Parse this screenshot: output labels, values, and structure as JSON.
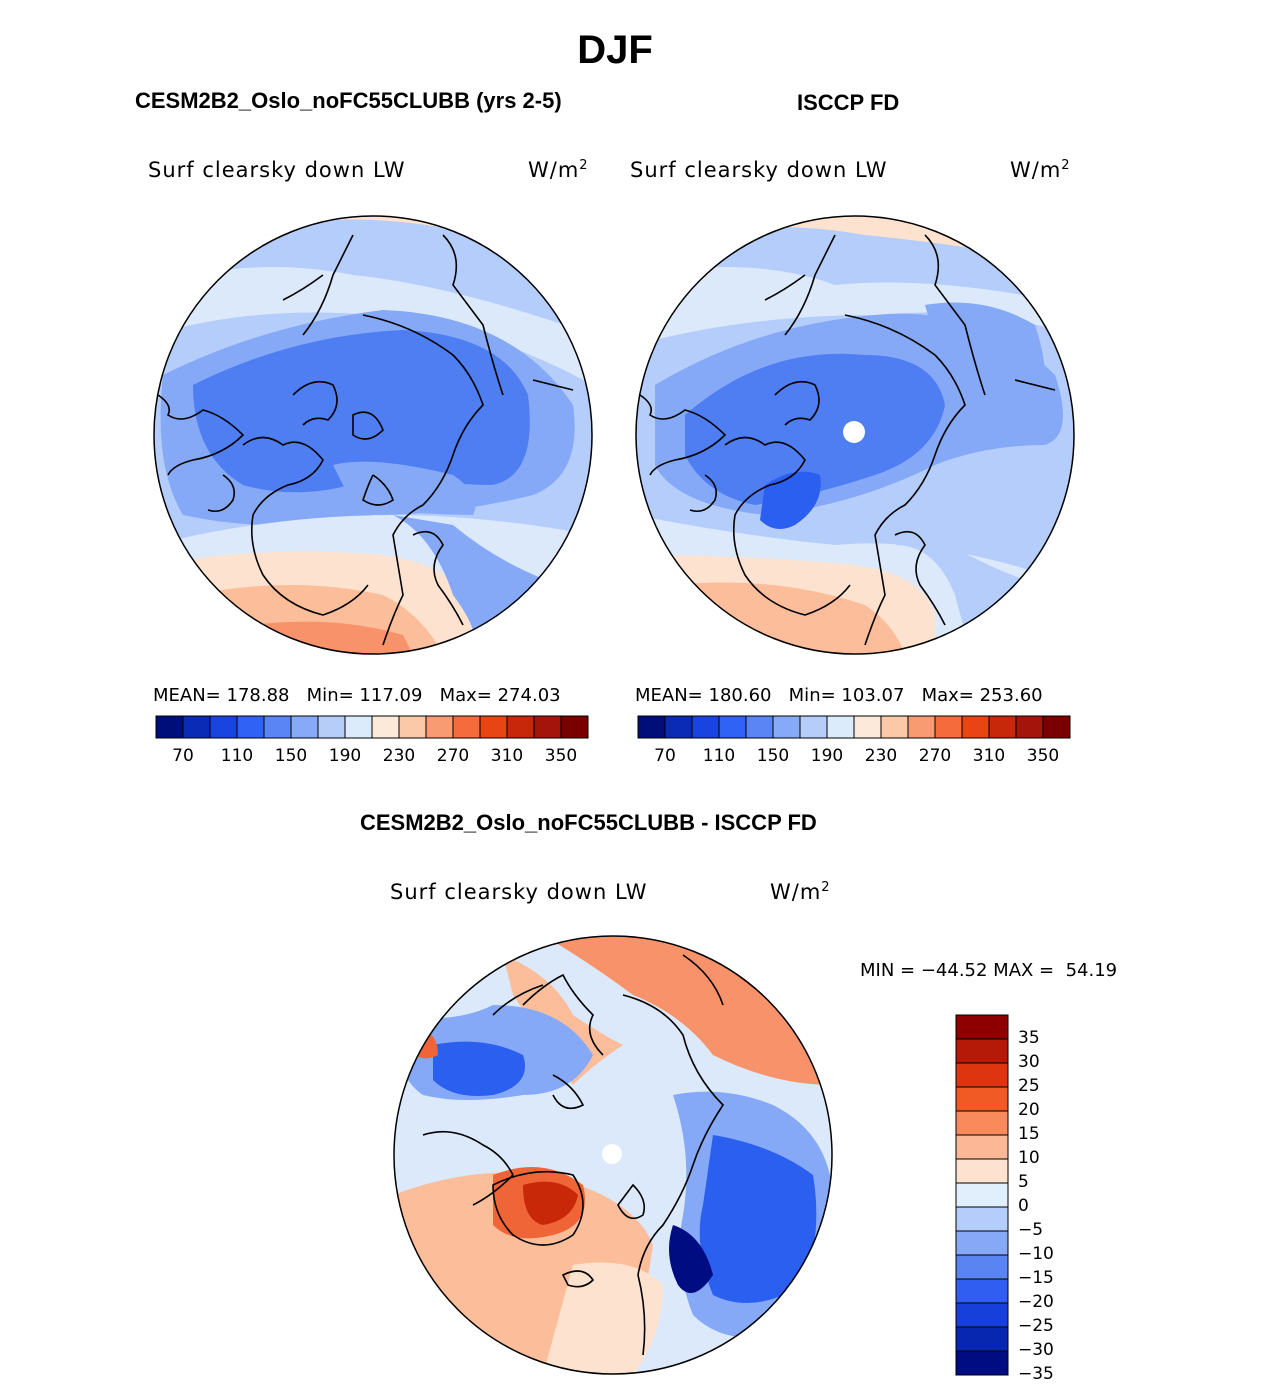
{
  "figure": {
    "season": "DJF",
    "difference_title": "CESM2B2_Oslo_noFC55CLUBB - ISCCP FD"
  },
  "panels": [
    {
      "title": "CESM2B2_Oslo_noFC55CLUBB (yrs 2-5)",
      "variable": "Surf clearsky down LW",
      "units": "W/m",
      "units_exp": "2",
      "mean_label": "MEAN=",
      "mean": "178.88",
      "min_label": "Min=",
      "min": "117.09",
      "max_label": "Max=",
      "max": "274.03"
    },
    {
      "title": "ISCCP FD",
      "variable": "Surf clearsky down LW",
      "units": "W/m",
      "units_exp": "2",
      "mean_label": "MEAN=",
      "mean": "180.60",
      "min_label": "Min=",
      "min": "103.07",
      "max_label": "Max=",
      "max": "253.60"
    }
  ],
  "difference": {
    "variable": "Surf clearsky down LW",
    "units": "W/m",
    "units_exp": "2",
    "minmax": "MIN = −44.52 MAX =  54.19"
  },
  "colorbar_main": {
    "colors": [
      "#000e7a",
      "#0a2bb5",
      "#1a44e0",
      "#2f62f5",
      "#5a86f5",
      "#87aaf8",
      "#b6cdfa",
      "#dcebfb",
      "#fde9da",
      "#fcc9a8",
      "#f99b72",
      "#f56b3c",
      "#e94414",
      "#c8280a",
      "#a5140a",
      "#7a0000"
    ],
    "labels": [
      "70",
      "110",
      "150",
      "190",
      "230",
      "270",
      "310",
      "350"
    ]
  },
  "colorbar_diff": {
    "colors_top_to_bottom": [
      "#8e0000",
      "#b51a08",
      "#dc3510",
      "#f25a25",
      "#f98a5c",
      "#fcb796",
      "#fde3cf",
      "#e1eefb",
      "#b5cdfa",
      "#86a8f6",
      "#5a84f2",
      "#2f5ef0",
      "#1740da",
      "#0827b0",
      "#000c82"
    ],
    "labels": [
      "35",
      "30",
      "25",
      "20",
      "15",
      "10",
      "5",
      "0",
      "−5",
      "−10",
      "−15",
      "−20",
      "−25",
      "−30",
      "−35"
    ]
  },
  "map_colors": {
    "deep_blue": "#2a5ff0",
    "blue": "#4f7ef3",
    "mid_blue": "#85a9f7",
    "light_blue": "#b5cdfa",
    "pale_blue": "#dbe9fb",
    "pale_orange": "#fde3cf",
    "light_orange": "#fcbd9a",
    "orange": "#f7926a",
    "red_orange": "#ef6537",
    "dark_red": "#c82808",
    "coast": "#000000"
  }
}
